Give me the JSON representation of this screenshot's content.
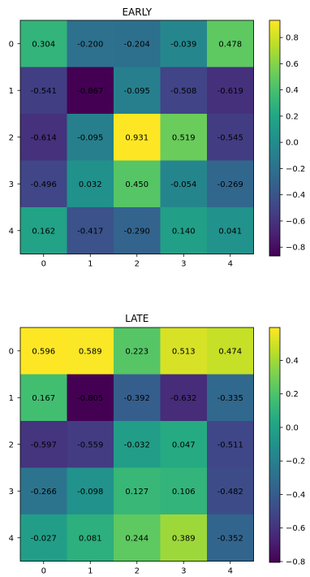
{
  "chart_data": [
    {
      "type": "heatmap",
      "title": "EARLY",
      "x_ticks": [
        "0",
        "1",
        "2",
        "3",
        "4"
      ],
      "y_ticks": [
        "0",
        "1",
        "2",
        "3",
        "4"
      ],
      "values": [
        [
          0.304,
          -0.2,
          -0.204,
          -0.039,
          0.478
        ],
        [
          -0.541,
          -0.867,
          -0.095,
          -0.508,
          -0.619
        ],
        [
          -0.614,
          -0.095,
          0.931,
          0.519,
          -0.545
        ],
        [
          -0.496,
          0.032,
          0.45,
          -0.054,
          -0.269
        ],
        [
          0.162,
          -0.417,
          -0.29,
          0.14,
          0.041
        ]
      ],
      "value_labels": [
        [
          "0.304",
          "-0.200",
          "-0.204",
          "-0.039",
          "0.478"
        ],
        [
          "-0.541",
          "-0.867",
          "-0.095",
          "-0.508",
          "-0.619"
        ],
        [
          "-0.614",
          "-0.095",
          "0.931",
          "0.519",
          "-0.545"
        ],
        [
          "-0.496",
          "0.032",
          "0.450",
          "-0.054",
          "-0.269"
        ],
        [
          "0.162",
          "-0.417",
          "-0.290",
          "0.140",
          "0.041"
        ]
      ],
      "colorbar": {
        "range": [
          -0.867,
          0.931
        ],
        "ticks": [
          0.8,
          0.6,
          0.4,
          0.2,
          0.0,
          -0.2,
          -0.4,
          -0.6,
          -0.8
        ],
        "tick_labels": [
          "0.8",
          "0.6",
          "0.4",
          "0.2",
          "0.0",
          "−0.2",
          "−0.4",
          "−0.6",
          "−0.8"
        ]
      },
      "colormap": "viridis"
    },
    {
      "type": "heatmap",
      "title": "LATE",
      "x_ticks": [
        "0",
        "1",
        "2",
        "3",
        "4"
      ],
      "y_ticks": [
        "0",
        "1",
        "2",
        "3",
        "4"
      ],
      "values": [
        [
          0.596,
          0.589,
          0.223,
          0.513,
          0.474
        ],
        [
          0.167,
          -0.805,
          -0.392,
          -0.632,
          -0.335
        ],
        [
          -0.597,
          -0.559,
          -0.032,
          0.047,
          -0.511
        ],
        [
          -0.266,
          -0.098,
          0.127,
          0.106,
          -0.482
        ],
        [
          -0.027,
          0.081,
          0.244,
          0.389,
          -0.352
        ]
      ],
      "value_labels": [
        [
          "0.596",
          "0.589",
          "0.223",
          "0.513",
          "0.474"
        ],
        [
          "0.167",
          "-0.805",
          "-0.392",
          "-0.632",
          "-0.335"
        ],
        [
          "-0.597",
          "-0.559",
          "-0.032",
          "0.047",
          "-0.511"
        ],
        [
          "-0.266",
          "-0.098",
          "0.127",
          "0.106",
          "-0.482"
        ],
        [
          "-0.027",
          "0.081",
          "0.244",
          "0.389",
          "-0.352"
        ]
      ],
      "colorbar": {
        "range": [
          -0.805,
          0.596
        ],
        "ticks": [
          0.4,
          0.2,
          0.0,
          -0.2,
          -0.4,
          -0.6,
          -0.8
        ],
        "tick_labels": [
          "0.4",
          "0.2",
          "0.0",
          "−0.2",
          "−0.4",
          "−0.6",
          "−0.8"
        ]
      },
      "colormap": "viridis"
    }
  ]
}
